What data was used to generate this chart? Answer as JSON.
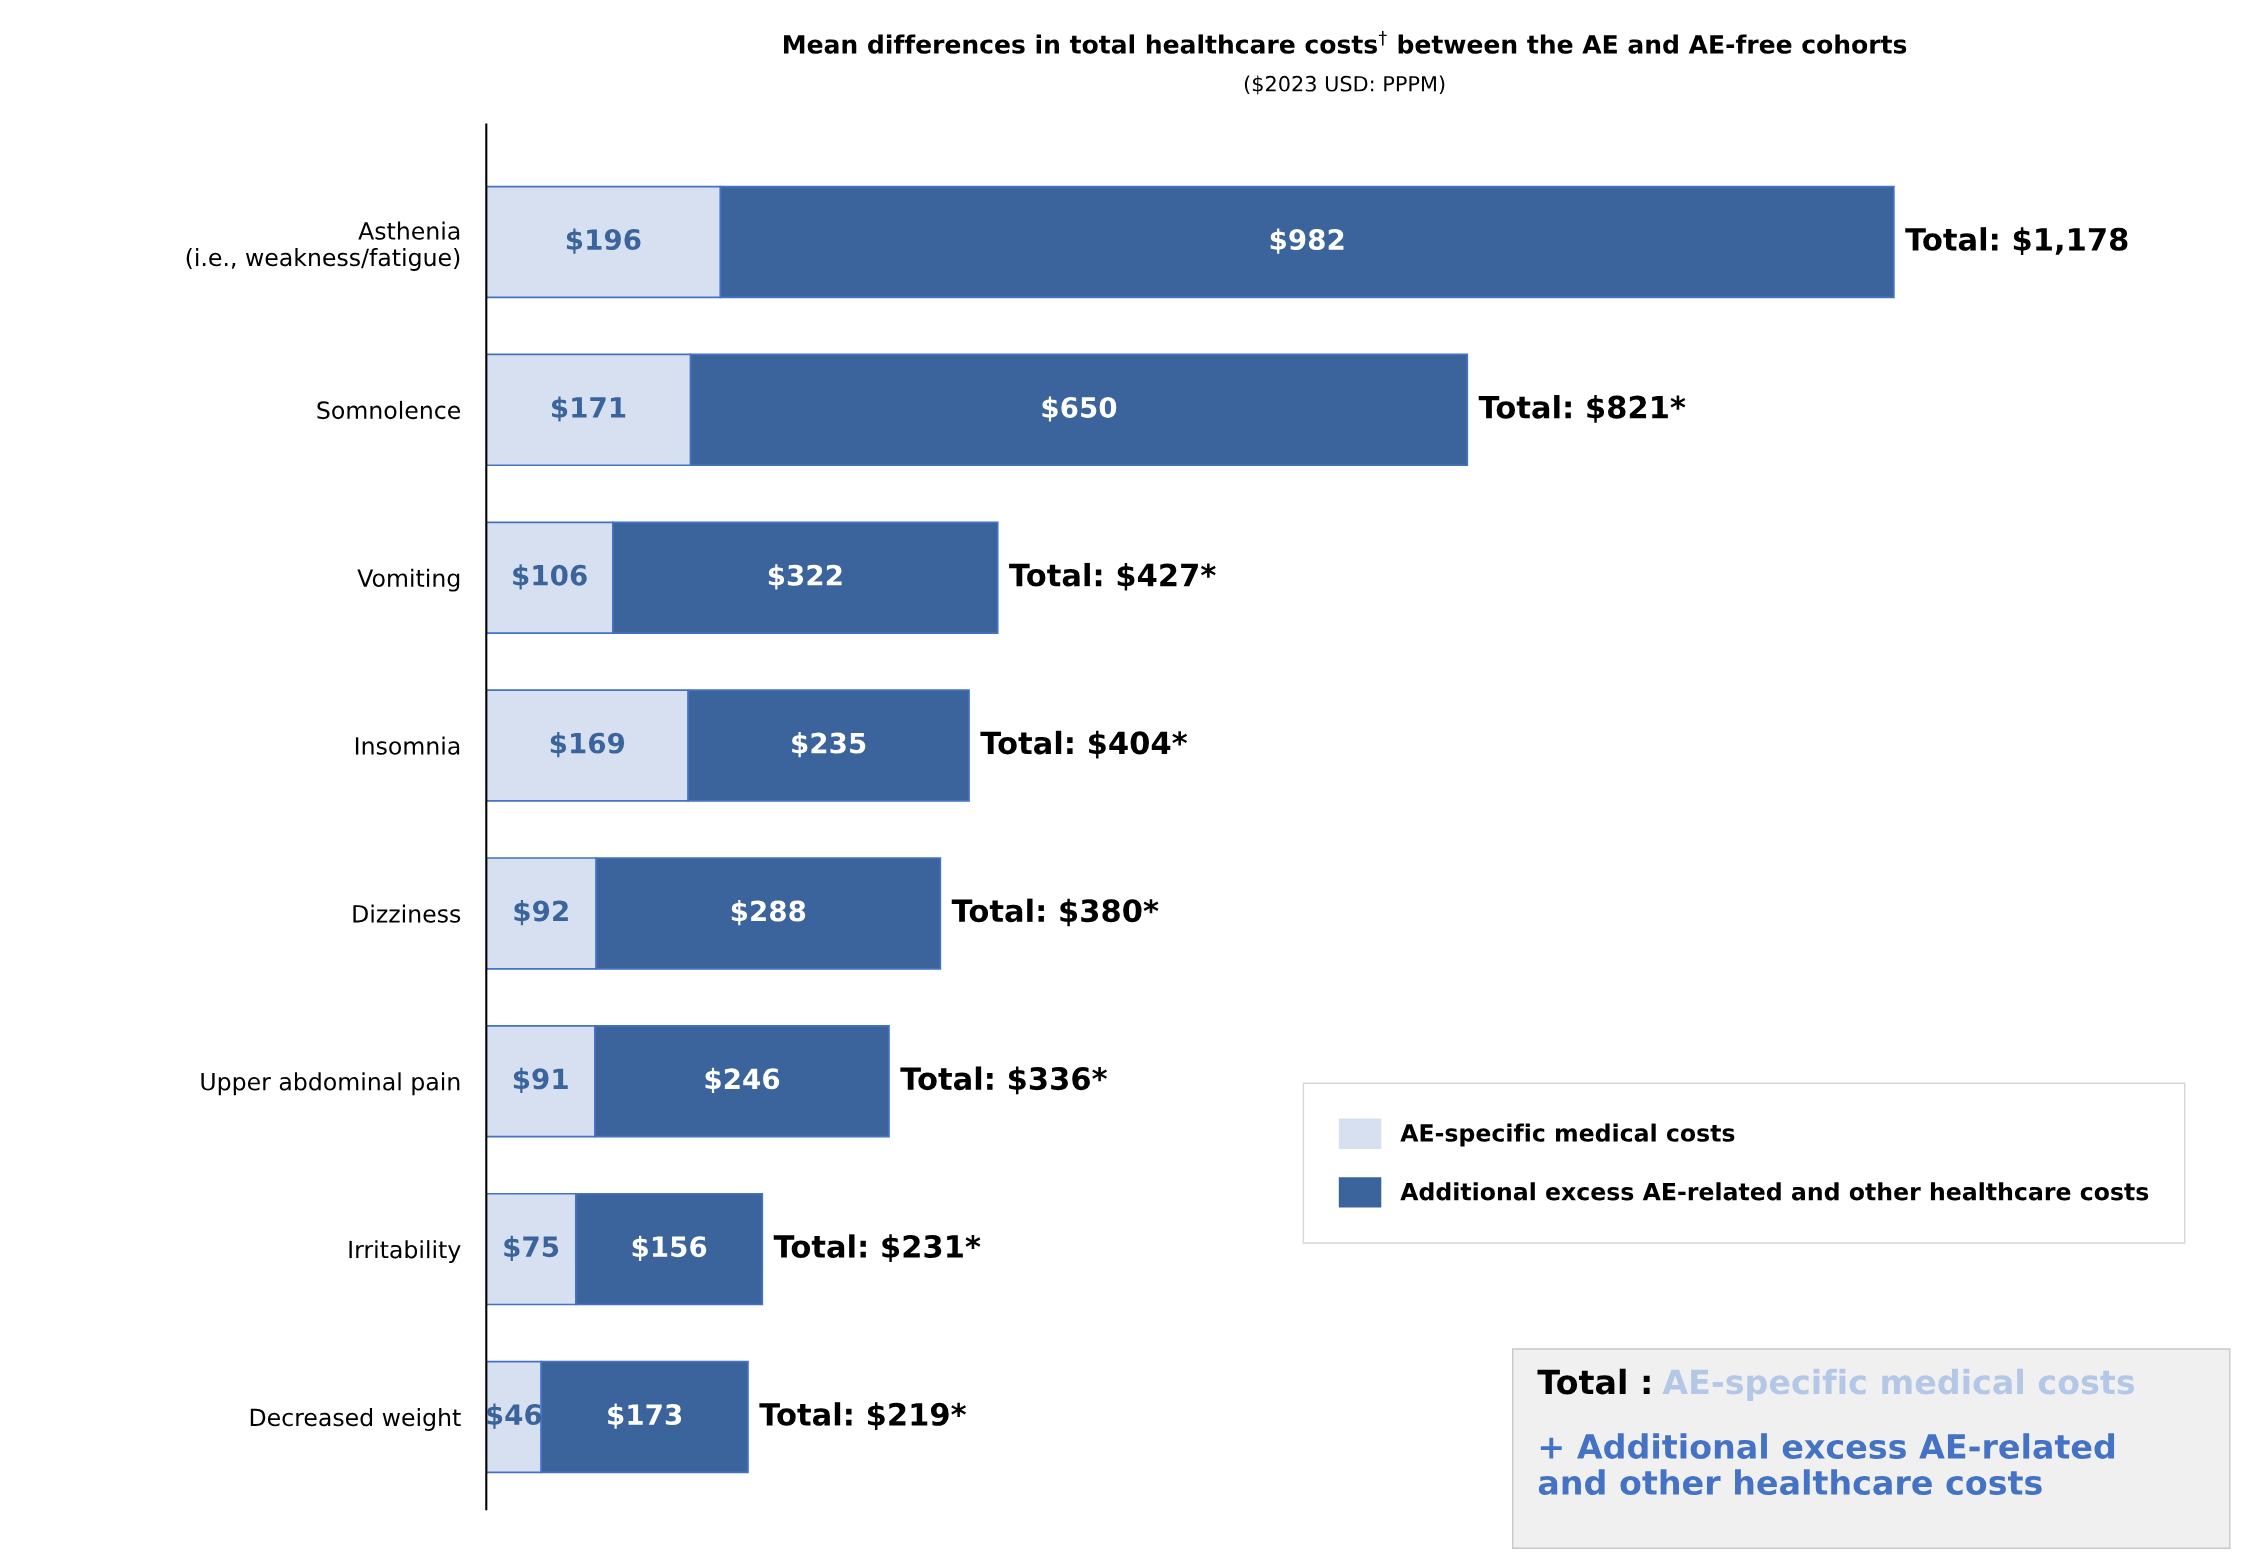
{
  "chart_data": {
    "type": "bar",
    "orientation": "horizontal",
    "stacked": true,
    "title": "Mean differences in total healthcare costs$^{†}$ between the AE and AE-free cohorts",
    "subtitle": "($2023 USD: PPPM)",
    "categories": [
      "Asthenia\n(i.e., weakness/fatigue)",
      "Somnolence",
      "Vomiting",
      "Insomnia",
      "Dizziness",
      "Upper abdominal pain",
      "Irritability",
      "Decreased weight"
    ],
    "series": [
      {
        "name": "AE-specific medical costs",
        "color": "#d6e0f0",
        "values": [
          196,
          171,
          106,
          169,
          92,
          91,
          75,
          46
        ],
        "value_labels": [
          "$196",
          "$171",
          "$106",
          "$169",
          "$92",
          "$91",
          "$75",
          "$46"
        ]
      },
      {
        "name": "Additional excess AE-related and other healthcare costs",
        "color": "#3a649b",
        "values": [
          982,
          650,
          322,
          235,
          288,
          246,
          156,
          173
        ],
        "value_labels": [
          "$982",
          "$650",
          "$322",
          "$235",
          "$288",
          "$246",
          "$156",
          "$173"
        ]
      }
    ],
    "totals": [
      "Total: $1,178",
      "Total: $821*",
      "Total: $427*",
      "Total: $404*",
      "Total: $380*",
      "Total: $336*",
      "Total: $231*",
      "Total: $219*"
    ],
    "legend": "right",
    "annotations": [
      "Total :",
      "AE-specific medical costs",
      "+ Additional excess AE-related and other healthcare costs"
    ]
  }
}
